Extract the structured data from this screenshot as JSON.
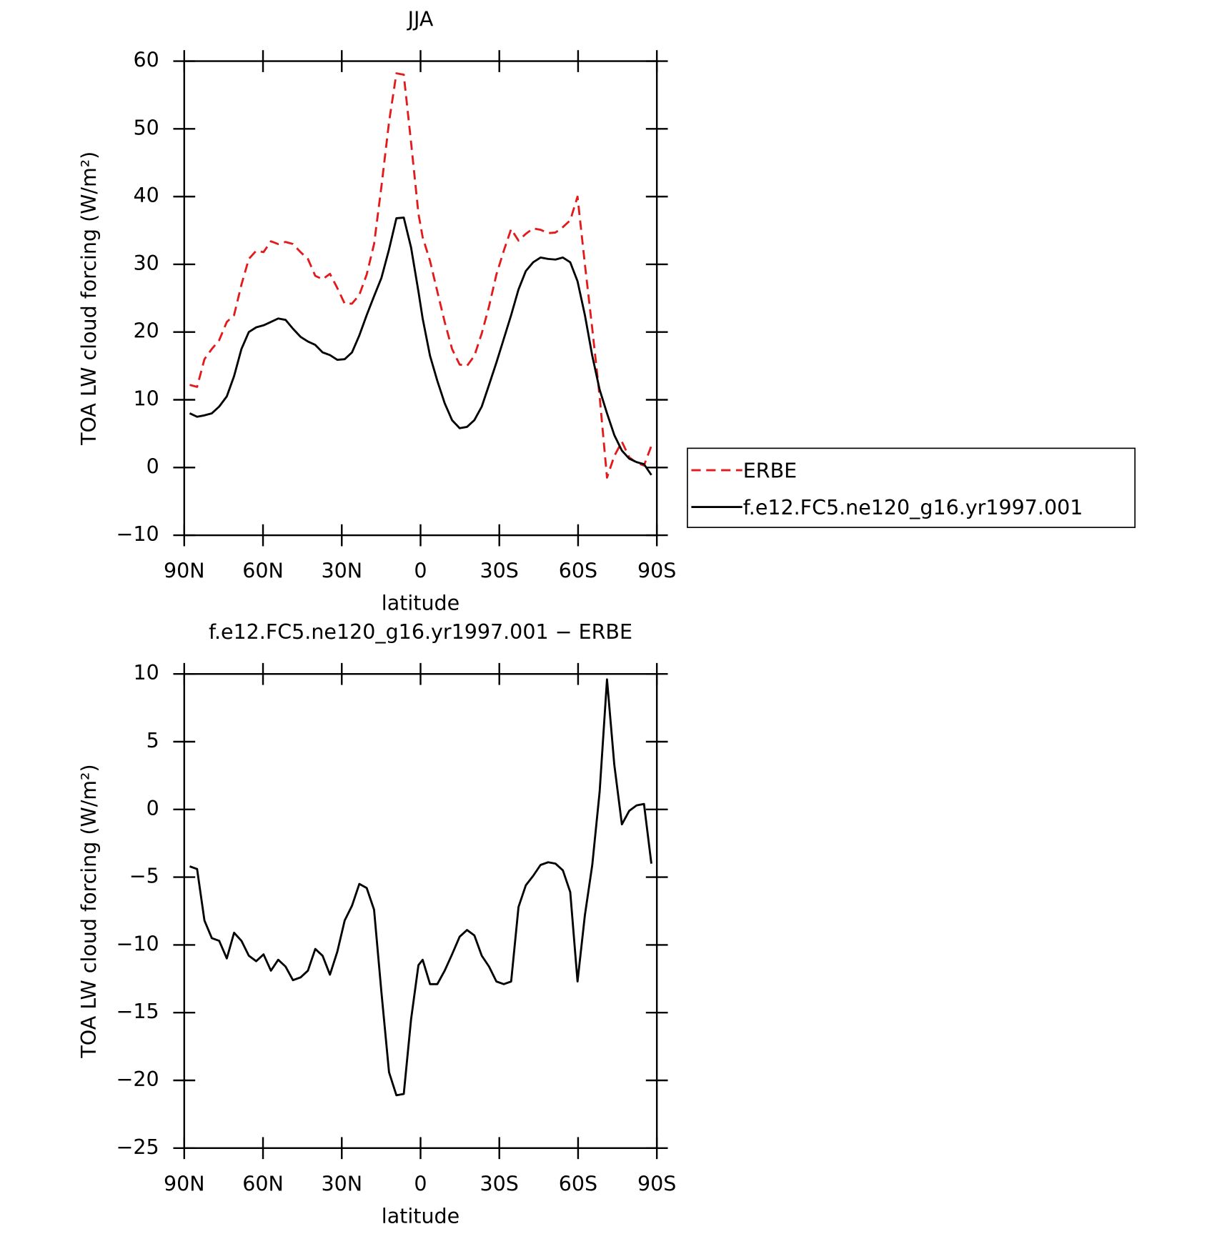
{
  "chart_data": [
    {
      "type": "line",
      "title": "JJA",
      "xlabel": "latitude",
      "ylabel": "TOA LW cloud forcing (W/m²)",
      "x": [
        87.9,
        85.1,
        82.3,
        79.5,
        76.7,
        73.8,
        71.0,
        68.2,
        65.4,
        62.6,
        59.8,
        57.0,
        54.2,
        51.4,
        48.6,
        45.7,
        42.9,
        40.1,
        37.3,
        34.5,
        31.7,
        28.9,
        26.1,
        23.3,
        20.5,
        17.7,
        14.9,
        12.0,
        9.2,
        6.4,
        3.6,
        0.8,
        -0.8,
        -3.6,
        -6.4,
        -9.2,
        -12.0,
        -14.9,
        -17.7,
        -20.5,
        -23.3,
        -26.1,
        -28.9,
        -31.7,
        -34.5,
        -37.3,
        -40.1,
        -42.9,
        -45.7,
        -48.6,
        -51.4,
        -54.2,
        -57.0,
        -59.8,
        -62.6,
        -65.4,
        -68.2,
        -71.0,
        -73.8,
        -76.7,
        -79.5,
        -82.3,
        -85.1,
        -87.9
      ],
      "xlim": [
        90,
        -90
      ],
      "xticks": [
        {
          "value": 90,
          "label": "90N"
        },
        {
          "value": 60,
          "label": "60N"
        },
        {
          "value": 30,
          "label": "30N"
        },
        0,
        {
          "value": -30,
          "label": "30S"
        },
        {
          "value": -60,
          "label": "60S"
        },
        {
          "value": -90,
          "label": "90S"
        }
      ],
      "ylim": [
        -10,
        60
      ],
      "yticks": [
        {
          "value": -10,
          "label": "−10"
        },
        0,
        10,
        20,
        30,
        40,
        50,
        60
      ],
      "legend": "right",
      "series": [
        {
          "name": "ERBE",
          "color": "#e31a1c",
          "dashed": true,
          "values": [
            12.2,
            11.9,
            16,
            17.5,
            18.8,
            21.5,
            22.5,
            27,
            30.8,
            32,
            31.8,
            33.4,
            33,
            33.3,
            33,
            31.8,
            30.8,
            28.3,
            27.8,
            28.6,
            26.5,
            24.2,
            24.2,
            25.5,
            28.5,
            33,
            41.5,
            51,
            58.2,
            58,
            48,
            37.5,
            34,
            30.5,
            26,
            21.5,
            17.5,
            15.2,
            15,
            16.5,
            19.8,
            23.8,
            28.5,
            32,
            35.2,
            33.5,
            34.5,
            35.3,
            35.1,
            34.6,
            34.7,
            35.5,
            36.5,
            40,
            30,
            20.5,
            10.5,
            -1.5,
            1.7,
            3.8,
            1.5,
            0.7,
            0.3,
            3.2
          ]
        },
        {
          "name": "f.e12.FC5.ne120_g16.yr1997.001",
          "color": "#000000",
          "dashed": false,
          "values": [
            8.0,
            7.5,
            7.7,
            8.0,
            9,
            10.5,
            13.5,
            17.5,
            20,
            20.7,
            21,
            21.5,
            22,
            21.8,
            20.5,
            19.3,
            18.6,
            18.1,
            17,
            16.6,
            15.9,
            16,
            17,
            19.5,
            22.5,
            25.3,
            28,
            32.2,
            36.8,
            36.9,
            32.5,
            26,
            22,
            16.5,
            12.8,
            9.5,
            7,
            5.8,
            6,
            7,
            9,
            12.2,
            15.5,
            19,
            22.5,
            26.3,
            29,
            30.3,
            31,
            30.8,
            30.7,
            31,
            30.3,
            27.5,
            22.5,
            16.5,
            11.5,
            8,
            4.8,
            2.5,
            1.3,
            0.8,
            0.5,
            -1.1
          ]
        }
      ]
    },
    {
      "type": "line",
      "title": "f.e12.FC5.ne120_g16.yr1997.001 − ERBE",
      "xlabel": "latitude",
      "ylabel": "TOA LW cloud forcing (W/m²)",
      "x": [
        87.9,
        85.1,
        82.3,
        79.5,
        76.7,
        73.8,
        71.0,
        68.2,
        65.4,
        62.6,
        59.8,
        57.0,
        54.2,
        51.4,
        48.6,
        45.7,
        42.9,
        40.1,
        37.3,
        34.5,
        31.7,
        28.9,
        26.1,
        23.3,
        20.5,
        17.7,
        14.9,
        12.0,
        9.2,
        6.4,
        3.6,
        0.8,
        -0.8,
        -3.6,
        -6.4,
        -9.2,
        -12.0,
        -14.9,
        -17.7,
        -20.5,
        -23.3,
        -26.1,
        -28.9,
        -31.7,
        -34.5,
        -37.3,
        -40.1,
        -42.9,
        -45.7,
        -48.6,
        -51.4,
        -54.2,
        -57.0,
        -59.8,
        -62.6,
        -65.4,
        -68.2,
        -71.0,
        -73.8,
        -76.7,
        -79.5,
        -82.3,
        -85.1,
        -87.9
      ],
      "xlim": [
        90,
        -90
      ],
      "xticks": [
        {
          "value": 90,
          "label": "90N"
        },
        {
          "value": 60,
          "label": "60N"
        },
        {
          "value": 30,
          "label": "30N"
        },
        0,
        {
          "value": -30,
          "label": "30S"
        },
        {
          "value": -60,
          "label": "60S"
        },
        {
          "value": -90,
          "label": "90S"
        }
      ],
      "ylim": [
        -25,
        10
      ],
      "yticks": [
        {
          "value": -25,
          "label": "−25"
        },
        {
          "value": -20,
          "label": "−20"
        },
        {
          "value": -15,
          "label": "−15"
        },
        {
          "value": -10,
          "label": "−10"
        },
        {
          "value": -5,
          "label": "−5"
        },
        0,
        5,
        10
      ],
      "series": [
        {
          "color": "#000000",
          "dashed": false,
          "values": [
            -4.2,
            -4.4,
            -8.2,
            -9.5,
            -9.7,
            -11,
            -9.1,
            -9.7,
            -10.8,
            -11.2,
            -10.7,
            -11.9,
            -11.1,
            -11.6,
            -12.6,
            -12.4,
            -11.9,
            -10.3,
            -10.8,
            -12.2,
            -10.5,
            -8.2,
            -7.1,
            -5.5,
            -5.8,
            -7.4,
            -13.5,
            -19.4,
            -21.1,
            -21,
            -15.5,
            -11.5,
            -11.1,
            -12.9,
            -12.9,
            -11.9,
            -10.7,
            -9.4,
            -8.9,
            -9.3,
            -10.8,
            -11.6,
            -12.7,
            -12.9,
            -12.7,
            -7.2,
            -5.6,
            -4.9,
            -4.1,
            -3.9,
            -4.0,
            -4.5,
            -6.1,
            -12.7,
            -7.8,
            -4.1,
            1.3,
            9.6,
            3.3,
            -1.1,
            -0.1,
            0.3,
            0.4,
            -4.0
          ]
        }
      ]
    }
  ]
}
